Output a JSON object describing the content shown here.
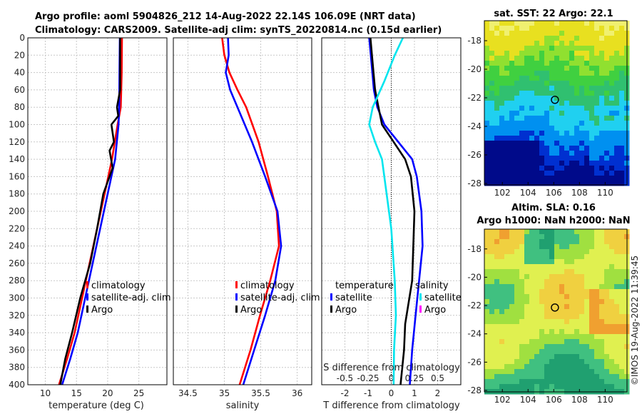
{
  "colors": {
    "climatology": "#ff0000",
    "satellite": "#0000ff",
    "argo": "#000000",
    "salinity_satellite": "#00e5ee",
    "salinity_argo": "#ff00ff",
    "grid": "#c8c8c8"
  },
  "header": {
    "line1": "Argo profile: aoml 5904826_212 14-Aug-2022 22.14S 106.09E (NRT data)",
    "line2": "Climatology: CARS2009. Satellite-adj clim: synTS_20220814.nc (0.15d earlier)"
  },
  "depth_ticks": [
    "0",
    "20",
    "40",
    "60",
    "80",
    "100",
    "120",
    "140",
    "160",
    "180",
    "200",
    "220",
    "240",
    "260",
    "280",
    "300",
    "320",
    "340",
    "360",
    "380",
    "400"
  ],
  "chart_data": [
    {
      "type": "line",
      "name": "temperature",
      "xlabel": "temperature (deg C)",
      "xlim": [
        7.2,
        29.5
      ],
      "ylim": [
        0,
        400
      ],
      "y_reversed": true,
      "xtick_labels": [
        "10",
        "15",
        "20",
        "25"
      ],
      "xticks": [
        10,
        15,
        20,
        25
      ],
      "legend": [
        "climatology",
        "satellite-adj. clim",
        "Argo"
      ],
      "series": [
        {
          "name": "climatology",
          "color": "#ff0000",
          "points": [
            [
              22.3,
              0
            ],
            [
              22.25,
              40
            ],
            [
              22.1,
              80
            ],
            [
              21.6,
              100
            ],
            [
              20.7,
              140
            ],
            [
              19.5,
              180
            ],
            [
              18.3,
              220
            ],
            [
              17.1,
              260
            ],
            [
              15.9,
              300
            ],
            [
              14.7,
              340
            ],
            [
              13.5,
              370
            ],
            [
              12.2,
              400
            ]
          ]
        },
        {
          "name": "satellite-adj. clim",
          "color": "#0000ff",
          "points": [
            [
              21.95,
              0
            ],
            [
              21.9,
              40
            ],
            [
              21.85,
              80
            ],
            [
              21.75,
              100
            ],
            [
              21.2,
              140
            ],
            [
              20.0,
              180
            ],
            [
              18.8,
              220
            ],
            [
              17.6,
              260
            ],
            [
              16.4,
              300
            ],
            [
              15.2,
              340
            ],
            [
              14.0,
              370
            ],
            [
              12.7,
              400
            ]
          ]
        },
        {
          "name": "Argo",
          "color": "#000000",
          "points": [
            [
              22.0,
              0
            ],
            [
              22.0,
              60
            ],
            [
              21.5,
              80
            ],
            [
              21.7,
              90
            ],
            [
              20.6,
              100
            ],
            [
              21.0,
              120
            ],
            [
              20.3,
              130
            ],
            [
              20.8,
              150
            ],
            [
              19.3,
              180
            ],
            [
              18.3,
              220
            ],
            [
              17.2,
              260
            ],
            [
              15.6,
              300
            ],
            [
              14.3,
              340
            ],
            [
              13.2,
              370
            ],
            [
              12.4,
              400
            ]
          ]
        }
      ]
    },
    {
      "type": "line",
      "name": "salinity",
      "xlabel": "salinity",
      "xlim": [
        34.3,
        36.2
      ],
      "ylim": [
        0,
        400
      ],
      "y_reversed": true,
      "xtick_labels": [
        "34.5",
        "35",
        "35.5",
        "36"
      ],
      "xticks": [
        34.5,
        35.0,
        35.5,
        36.0
      ],
      "legend": [
        "climatology",
        "satellite-adj. clim",
        "Argo"
      ],
      "series": [
        {
          "name": "climatology",
          "color": "#ff0000",
          "points": [
            [
              34.97,
              0
            ],
            [
              35.0,
              20
            ],
            [
              35.07,
              40
            ],
            [
              35.18,
              60
            ],
            [
              35.3,
              80
            ],
            [
              35.47,
              120
            ],
            [
              35.6,
              160
            ],
            [
              35.72,
              200
            ],
            [
              35.75,
              240
            ],
            [
              35.63,
              280
            ],
            [
              35.49,
              320
            ],
            [
              35.36,
              360
            ],
            [
              35.21,
              400
            ]
          ]
        },
        {
          "name": "satellite-adj. clim",
          "color": "#0000ff",
          "points": [
            [
              35.05,
              0
            ],
            [
              35.06,
              20
            ],
            [
              35.02,
              40
            ],
            [
              35.08,
              60
            ],
            [
              35.18,
              80
            ],
            [
              35.38,
              120
            ],
            [
              35.56,
              160
            ],
            [
              35.73,
              200
            ],
            [
              35.78,
              240
            ],
            [
              35.7,
              280
            ],
            [
              35.56,
              320
            ],
            [
              35.41,
              360
            ],
            [
              35.26,
              400
            ]
          ]
        }
      ]
    },
    {
      "type": "line",
      "name": "difference from climatology",
      "xlabel": "T difference from climatology",
      "x2label": "S difference from climatology",
      "xlim": [
        -3.0,
        3.0
      ],
      "ylim": [
        0,
        400
      ],
      "y_reversed": true,
      "xtick_labels": [
        "-2",
        "-1",
        "0",
        "1",
        "2"
      ],
      "xticks": [
        -2,
        -1,
        0,
        1,
        2
      ],
      "x2tick_labels": [
        "-0.5",
        "-0.25",
        "0",
        "0.25",
        "0.5"
      ],
      "x2ticks_T_units": [
        -2,
        -1,
        0,
        1,
        2
      ],
      "legend_temperature_title": "temperature",
      "legend_temperature": [
        "satellite",
        "Argo"
      ],
      "legend_salinity_title": "salinity",
      "legend_salinity": [
        "satellite",
        "Argo"
      ],
      "series": [
        {
          "name": "T satellite",
          "color": "#0000ff",
          "points": [
            [
              -0.95,
              0
            ],
            [
              -0.85,
              30
            ],
            [
              -0.75,
              60
            ],
            [
              -0.6,
              80
            ],
            [
              -0.3,
              100
            ],
            [
              0.3,
              120
            ],
            [
              0.9,
              140
            ],
            [
              1.1,
              160
            ],
            [
              1.3,
              200
            ],
            [
              1.35,
              240
            ],
            [
              1.2,
              280
            ],
            [
              1.05,
              320
            ],
            [
              0.9,
              360
            ],
            [
              0.8,
              400
            ]
          ]
        },
        {
          "name": "T Argo",
          "color": "#000000",
          "points": [
            [
              -0.9,
              0
            ],
            [
              -0.8,
              30
            ],
            [
              -0.7,
              60
            ],
            [
              -0.55,
              80
            ],
            [
              -0.4,
              100
            ],
            [
              0.1,
              120
            ],
            [
              0.6,
              140
            ],
            [
              0.85,
              160
            ],
            [
              1.0,
              200
            ],
            [
              0.95,
              240
            ],
            [
              0.9,
              280
            ],
            [
              0.6,
              330
            ],
            [
              0.55,
              360
            ],
            [
              0.4,
              400
            ]
          ]
        },
        {
          "name": "S satellite",
          "color": "#00e5ee",
          "points": [
            [
              0.5,
              0
            ],
            [
              0.15,
              20
            ],
            [
              -0.3,
              50
            ],
            [
              -0.8,
              80
            ],
            [
              -0.95,
              100
            ],
            [
              -0.7,
              120
            ],
            [
              -0.4,
              140
            ],
            [
              -0.2,
              180
            ],
            [
              0.0,
              220
            ],
            [
              0.15,
              280
            ],
            [
              0.2,
              320
            ],
            [
              0.12,
              360
            ],
            [
              0.1,
              400
            ]
          ]
        }
      ]
    }
  ],
  "maps": {
    "sst": {
      "title": "sat. SST: 22 Argo: 22.1",
      "xtick_labels": [
        "102",
        "104",
        "106",
        "108",
        "110"
      ],
      "ytick_labels": [
        "-18",
        "-20",
        "-22",
        "-24",
        "-26",
        "-28"
      ]
    },
    "sla": {
      "title_line1": "Altim. SLA: 0.16",
      "title_line2": "Argo h1000: NaN h2000: NaN",
      "xtick_labels": [
        "102",
        "104",
        "106",
        "108",
        "110"
      ],
      "ytick_labels": [
        "-18",
        "-20",
        "-22",
        "-24",
        "-26",
        "-28"
      ]
    }
  },
  "footer": {
    "credit": "©IMOS 19-Aug-2022 11:39:45"
  }
}
